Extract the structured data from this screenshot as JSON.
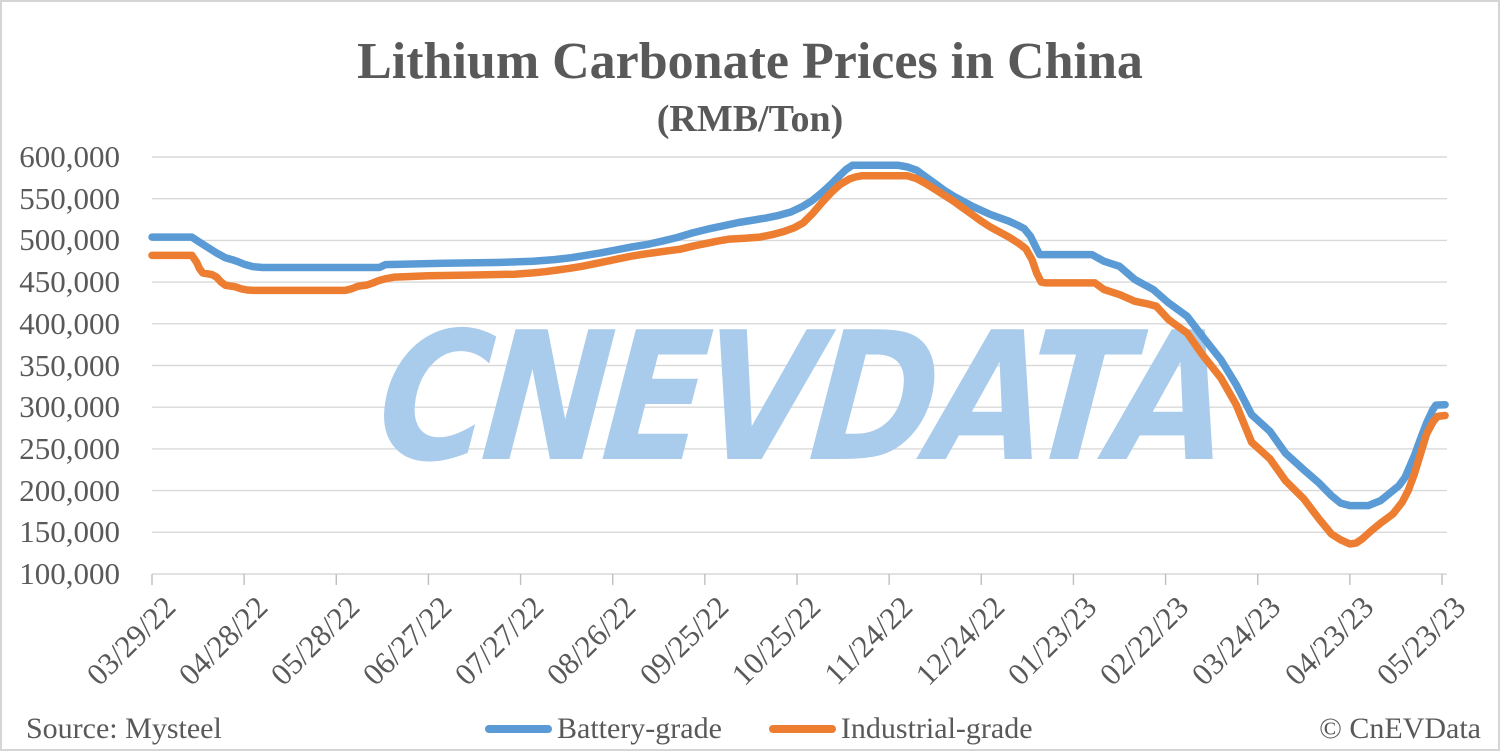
{
  "title": "Lithium Carbonate Prices in China",
  "subtitle": "(RMB/Ton)",
  "watermark": "CNEVDATA",
  "source": "Source: Mysteel",
  "copyright": "© CnEVData",
  "legend": [
    {
      "label": "Battery-grade",
      "color": "#5B9BD5"
    },
    {
      "label": "Industrial-grade",
      "color": "#ED7D31"
    }
  ],
  "colors": {
    "battery_blue": "#5B9BD5",
    "industrial_orange": "#ED7D31",
    "gridline": "#D9D9D9",
    "tick": "#BFBFBF",
    "text_gray": "#595959",
    "watermark_blue": "#A9CBEC"
  },
  "chart_data": {
    "type": "line",
    "title": "Lithium Carbonate Prices in China",
    "subtitle": "(RMB/Ton)",
    "grid": true,
    "legend_position": "bottom",
    "y_axis": {
      "min": 100000,
      "max": 600000,
      "tick_step": 50000,
      "tick_labels": [
        "600,000",
        "550,000",
        "500,000",
        "450,000",
        "400,000",
        "350,000",
        "300,000",
        "250,000",
        "200,000",
        "150,000",
        "100,000"
      ]
    },
    "x_axis": {
      "unit": "days since first point",
      "start_label": "03/29/22",
      "end_label": "05/23/23",
      "tick_interval_days": 30,
      "tick_labels": [
        "03/29/22",
        "04/28/22",
        "05/28/22",
        "06/27/22",
        "07/27/22",
        "08/26/22",
        "09/25/22",
        "10/25/22",
        "11/24/22",
        "12/24/22",
        "01/23/23",
        "02/22/23",
        "03/24/23",
        "04/23/23",
        "05/23/23"
      ]
    },
    "series": [
      {
        "name": "Battery-grade",
        "color": "#5B9BD5",
        "points": [
          [
            0,
            504000
          ],
          [
            13,
            504000
          ],
          [
            15,
            499000
          ],
          [
            18,
            492000
          ],
          [
            21,
            485000
          ],
          [
            24,
            479000
          ],
          [
            26,
            477000
          ],
          [
            28,
            474500
          ],
          [
            30,
            471500
          ],
          [
            33,
            468500
          ],
          [
            36,
            467500
          ],
          [
            74,
            467500
          ],
          [
            76,
            471000
          ],
          [
            95,
            472500
          ],
          [
            112,
            473500
          ],
          [
            124,
            475000
          ],
          [
            131,
            477000
          ],
          [
            136,
            479000
          ],
          [
            141,
            482000
          ],
          [
            146,
            485000
          ],
          [
            151,
            488500
          ],
          [
            156,
            492000
          ],
          [
            161,
            495000
          ],
          [
            166,
            499000
          ],
          [
            171,
            503500
          ],
          [
            176,
            509000
          ],
          [
            181,
            513500
          ],
          [
            186,
            517500
          ],
          [
            191,
            521500
          ],
          [
            196,
            524500
          ],
          [
            200,
            527000
          ],
          [
            204,
            530000
          ],
          [
            208,
            534000
          ],
          [
            212,
            541000
          ],
          [
            215,
            548000
          ],
          [
            218,
            557000
          ],
          [
            221,
            567000
          ],
          [
            224,
            578000
          ],
          [
            226,
            585000
          ],
          [
            228,
            590000
          ],
          [
            243,
            590000
          ],
          [
            246,
            588000
          ],
          [
            249,
            584000
          ],
          [
            252,
            576000
          ],
          [
            255,
            568000
          ],
          [
            258,
            560000
          ],
          [
            261,
            553000
          ],
          [
            264,
            547000
          ],
          [
            267,
            541000
          ],
          [
            270,
            536000
          ],
          [
            273,
            531000
          ],
          [
            276,
            527000
          ],
          [
            279,
            523000
          ],
          [
            282,
            518000
          ],
          [
            284,
            514000
          ],
          [
            286,
            505000
          ],
          [
            288,
            490000
          ],
          [
            289,
            483000
          ],
          [
            306,
            483000
          ],
          [
            310,
            475000
          ],
          [
            315,
            469000
          ],
          [
            320,
            453000
          ],
          [
            326,
            441000
          ],
          [
            331,
            425000
          ],
          [
            337,
            409000
          ],
          [
            342,
            385000
          ],
          [
            348,
            357000
          ],
          [
            353,
            327000
          ],
          [
            358,
            291000
          ],
          [
            364,
            271000
          ],
          [
            369,
            245000
          ],
          [
            375,
            225000
          ],
          [
            380,
            209000
          ],
          [
            384,
            194000
          ],
          [
            387,
            185000
          ],
          [
            390,
            182000
          ],
          [
            396,
            182000
          ],
          [
            400,
            188000
          ],
          [
            403,
            197000
          ],
          [
            406,
            206000
          ],
          [
            408,
            216000
          ],
          [
            411,
            242000
          ],
          [
            413,
            262000
          ],
          [
            415,
            281000
          ],
          [
            417,
            297000
          ],
          [
            418,
            302500
          ],
          [
            421,
            303000
          ]
        ]
      },
      {
        "name": "Industrial-grade",
        "color": "#ED7D31",
        "points": [
          [
            0,
            482000
          ],
          [
            13,
            482000
          ],
          [
            14.5,
            474000
          ],
          [
            15.5,
            466000
          ],
          [
            16.5,
            461000
          ],
          [
            19.5,
            459000
          ],
          [
            21,
            456000
          ],
          [
            22.5,
            450000
          ],
          [
            24,
            446000
          ],
          [
            27,
            444500
          ],
          [
            29,
            442000
          ],
          [
            31,
            440500
          ],
          [
            33,
            440000
          ],
          [
            63,
            440000
          ],
          [
            65,
            442000
          ],
          [
            67,
            445000
          ],
          [
            70,
            446500
          ],
          [
            72,
            449000
          ],
          [
            74,
            452000
          ],
          [
            76,
            454000
          ],
          [
            79,
            456000
          ],
          [
            90,
            457500
          ],
          [
            105,
            458500
          ],
          [
            118,
            459500
          ],
          [
            124,
            461000
          ],
          [
            128,
            462500
          ],
          [
            132,
            464500
          ],
          [
            136,
            466500
          ],
          [
            140,
            469000
          ],
          [
            144,
            472000
          ],
          [
            148,
            475000
          ],
          [
            152,
            478000
          ],
          [
            156,
            481000
          ],
          [
            160,
            483500
          ],
          [
            164,
            485500
          ],
          [
            168,
            487500
          ],
          [
            172,
            489500
          ],
          [
            176,
            493000
          ],
          [
            180,
            496000
          ],
          [
            184,
            499000
          ],
          [
            188,
            501500
          ],
          [
            193,
            502500
          ],
          [
            198,
            504000
          ],
          [
            202,
            507000
          ],
          [
            206,
            511000
          ],
          [
            209,
            515000
          ],
          [
            212,
            521000
          ],
          [
            215,
            532000
          ],
          [
            218,
            545000
          ],
          [
            221,
            557000
          ],
          [
            224,
            567000
          ],
          [
            227,
            573500
          ],
          [
            229,
            576000
          ],
          [
            231,
            577500
          ],
          [
            246,
            577500
          ],
          [
            249,
            574000
          ],
          [
            252,
            568000
          ],
          [
            255,
            561000
          ],
          [
            258,
            554000
          ],
          [
            261,
            547000
          ],
          [
            264,
            539000
          ],
          [
            267,
            531000
          ],
          [
            270,
            523000
          ],
          [
            273,
            516000
          ],
          [
            276,
            510000
          ],
          [
            279,
            504000
          ],
          [
            282,
            497000
          ],
          [
            284.5,
            490000
          ],
          [
            286.5,
            477000
          ],
          [
            288,
            461000
          ],
          [
            289.5,
            450000
          ],
          [
            291,
            449000
          ],
          [
            307,
            449000
          ],
          [
            310,
            441000
          ],
          [
            315,
            435000
          ],
          [
            320,
            427000
          ],
          [
            324,
            424000
          ],
          [
            327,
            421000
          ],
          [
            331,
            405000
          ],
          [
            337,
            389000
          ],
          [
            342,
            363000
          ],
          [
            348,
            335000
          ],
          [
            353,
            303000
          ],
          [
            358,
            258000
          ],
          [
            364,
            238000
          ],
          [
            369,
            212000
          ],
          [
            375,
            190000
          ],
          [
            380,
            166000
          ],
          [
            384,
            148000
          ],
          [
            387,
            141000
          ],
          [
            390,
            136000
          ],
          [
            392,
            137000
          ],
          [
            394,
            142000
          ],
          [
            397,
            152000
          ],
          [
            400,
            161000
          ],
          [
            404,
            172000
          ],
          [
            407,
            186000
          ],
          [
            409,
            200000
          ],
          [
            411,
            220000
          ],
          [
            413,
            244000
          ],
          [
            415,
            268000
          ],
          [
            417,
            282000
          ],
          [
            418.5,
            289000
          ],
          [
            421,
            290000
          ]
        ]
      }
    ]
  }
}
